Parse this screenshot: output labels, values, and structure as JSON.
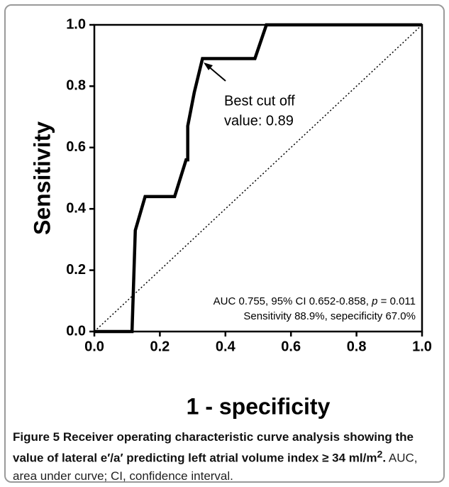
{
  "chart_data": {
    "type": "line",
    "x_label": "1 - specificity",
    "y_label": "Sensitivity",
    "series": [
      {
        "name": "ROC",
        "color": "#000000",
        "x": [
          0,
          0.115,
          0.125,
          0.155,
          0.245,
          0.28,
          0.285,
          0.285,
          0.305,
          0.33,
          0.49,
          0.525,
          1.0
        ],
        "values": [
          0,
          0,
          0.33,
          0.44,
          0.44,
          0.56,
          0.56,
          0.67,
          0.78,
          0.89,
          0.89,
          1.0,
          1.0
        ]
      }
    ],
    "xlim": [
      0,
      1
    ],
    "ylim": [
      0,
      1
    ],
    "xticks": [
      {
        "value": 0,
        "label": "0.0"
      },
      0.2,
      0.4,
      0.6,
      0.8,
      {
        "value": 1,
        "label": "1.0"
      }
    ],
    "yticks": [
      {
        "value": 0,
        "label": "0.0"
      },
      0.2,
      0.4,
      0.6,
      0.8,
      {
        "value": 1,
        "label": "1.0"
      }
    ],
    "annotations": [
      "Best cut off",
      "value: 0.89"
    ],
    "stats": {
      "line1_pre": "AUC 0.755, 95% CI 0.652-0.858, ",
      "line1_p": "p",
      "line1_post": " = 0.011",
      "line2": "Sensitivity 88.9%, sepecificity 67.0%"
    }
  },
  "caption": {
    "label": "Figure 5",
    "title": " Receiver operating characteristic curve analysis showing the value of lateral e′/a′ predicting left atrial volume index ≥ 34 ml/m",
    "sup": "2",
    "title_end": ".",
    "text": " AUC, area under curve; CI, confidence interval."
  }
}
